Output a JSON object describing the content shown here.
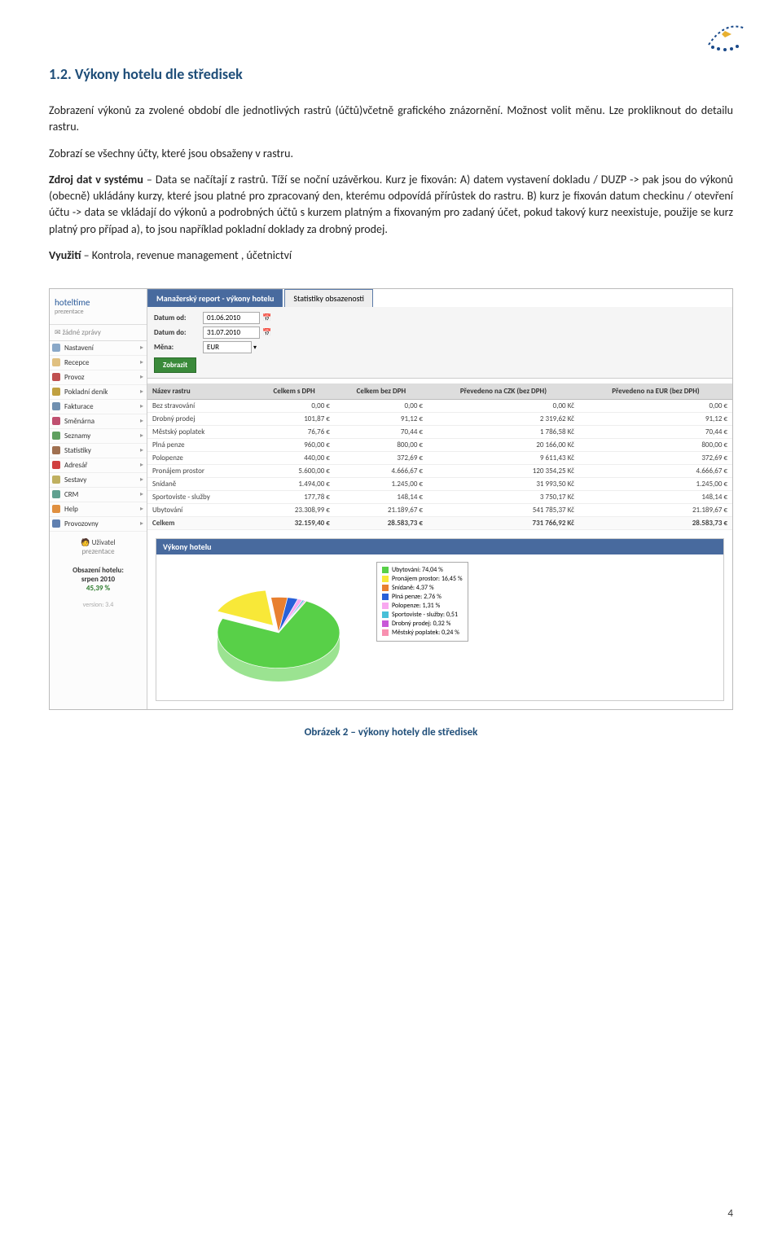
{
  "doc": {
    "heading": "1.2. Výkony hotelu dle středisek",
    "para1": "Zobrazení výkonů za zvolené období dle jednotlivých rastrů (účtů)včetně grafického znázornění. Možnost volit měnu. Lze prokliknout do detailu rastru.",
    "para2_prefix": "Zobrazí se všechny účty, které jsou obsaženy v rastru.",
    "para3_label": "Zdroj dat v systému",
    "para3_body": " – Data se načítají z rastrů. Tíží se noční uzávěrkou. Kurz je fixován: A) datem vystavení dokladu / DUZP -> pak jsou do výkonů (obecně) ukládány kurzy, které jsou platné pro zpracovaný den, kterému odpovídá přírůstek do rastru. B) kurz je fixován datum checkinu / otevření účtu -> data se vkládají do výkonů a podrobných účtů s kurzem platným a fixovaným pro zadaný účet, pokud takový kurz neexistuje, použije se kurz platný pro případ a), to jsou například pokladní doklady za drobný prodej.",
    "para4_label": "Využití",
    "para4_body": " – Kontrola,  revenue management , účetnictví",
    "caption": "Obrázek 2 – výkony hotely dle středisek",
    "page_num": "4"
  },
  "ss": {
    "logo": {
      "name": "hoteltime",
      "sub": "prezentace"
    },
    "no_msgs": "žádné zprávy",
    "menu": [
      {
        "label": "Nastavení",
        "color": "#8aa8c8"
      },
      {
        "label": "Recepce",
        "color": "#e0c080"
      },
      {
        "label": "Provoz",
        "color": "#c05050"
      },
      {
        "label": "Pokladní deník",
        "color": "#c0a040"
      },
      {
        "label": "Fakturace",
        "color": "#7090b0"
      },
      {
        "label": "Směnárna",
        "color": "#c05070"
      },
      {
        "label": "Seznamy",
        "color": "#60a060"
      },
      {
        "label": "Statistiky",
        "color": "#a07050"
      },
      {
        "label": "Adresář",
        "color": "#d04040"
      },
      {
        "label": "Sestavy",
        "color": "#c0b060"
      },
      {
        "label": "CRM",
        "color": "#60a090"
      },
      {
        "label": "Help",
        "color": "#e09040"
      },
      {
        "label": "Provozovny",
        "color": "#6080b0"
      }
    ],
    "user": {
      "label": "Uživatel",
      "sub": "prezentace"
    },
    "occupancy": {
      "label": "Obsazení hotelu:",
      "period": "srpen 2010",
      "value": "45,39 %"
    },
    "version": "version: 3.4",
    "tabs": {
      "active": "Manažerský report - výkony hotelu",
      "other": "Statistiky obsazenosti"
    },
    "filters": {
      "date_from_label": "Datum od:",
      "date_from": "01.06.2010",
      "date_to_label": "Datum do:",
      "date_to": "31.07.2010",
      "currency_label": "Měna:",
      "currency": "EUR",
      "submit": "Zobrazit"
    },
    "table": {
      "columns": [
        "Název rastru",
        "Celkem s DPH",
        "Celkem bez DPH",
        "Převedeno na CZK (bez DPH)",
        "Převedeno na EUR (bez DPH)"
      ],
      "rows": [
        [
          "Bez stravování",
          "0,00 €",
          "0,00 €",
          "0,00 Kč",
          "0,00 €"
        ],
        [
          "Drobný prodej",
          "101,87 €",
          "91,12 €",
          "2 319,62 Kč",
          "91,12 €"
        ],
        [
          "Městský poplatek",
          "76,76 €",
          "70,44 €",
          "1 786,58 Kč",
          "70,44 €"
        ],
        [
          "Plná penze",
          "960,00 €",
          "800,00 €",
          "20 166,00 Kč",
          "800,00 €"
        ],
        [
          "Polopenze",
          "440,00 €",
          "372,69 €",
          "9 611,43 Kč",
          "372,69 €"
        ],
        [
          "Pronájem prostor",
          "5.600,00 €",
          "4.666,67 €",
          "120 354,25 Kč",
          "4.666,67 €"
        ],
        [
          "Snídaně",
          "1.494,00 €",
          "1.245,00 €",
          "31 993,50 Kč",
          "1.245,00 €"
        ],
        [
          "Sportoviste - služby",
          "177,78 €",
          "148,14 €",
          "3 750,17 Kč",
          "148,14 €"
        ],
        [
          "Ubytování",
          "23.308,99 €",
          "21.189,67 €",
          "541 785,37 Kč",
          "21.189,67 €"
        ]
      ],
      "total": [
        "Celkem",
        "32.159,40 €",
        "28.583,73 €",
        "731 766,92 Kč",
        "28.583,73 €"
      ]
    },
    "chart": {
      "title": "Výkony hotelu",
      "colors": {
        "background": "#ffffff",
        "border": "#cccccc"
      },
      "slices": [
        {
          "label": "Ubytování: 74,04 %",
          "value": 74.04,
          "color": "#58d048"
        },
        {
          "label": "Pronájem prostor: 16,45 %",
          "value": 16.45,
          "color": "#f8e838"
        },
        {
          "label": "Snídaně: 4,37 %",
          "value": 4.37,
          "color": "#e88030"
        },
        {
          "label": "Plná penze: 2,76 %",
          "value": 2.76,
          "color": "#2860d8"
        },
        {
          "label": "Polopenze: 1,31 %",
          "value": 1.31,
          "color": "#f8a8f0"
        },
        {
          "label": "Sportoviste - služby: 0,51",
          "value": 0.51,
          "color": "#48c0d8"
        },
        {
          "label": "Drobný prodej: 0,32 %",
          "value": 0.32,
          "color": "#c858d8"
        },
        {
          "label": "Městský poplatek: 0,24 %",
          "value": 0.24,
          "color": "#f890b0"
        }
      ]
    }
  }
}
